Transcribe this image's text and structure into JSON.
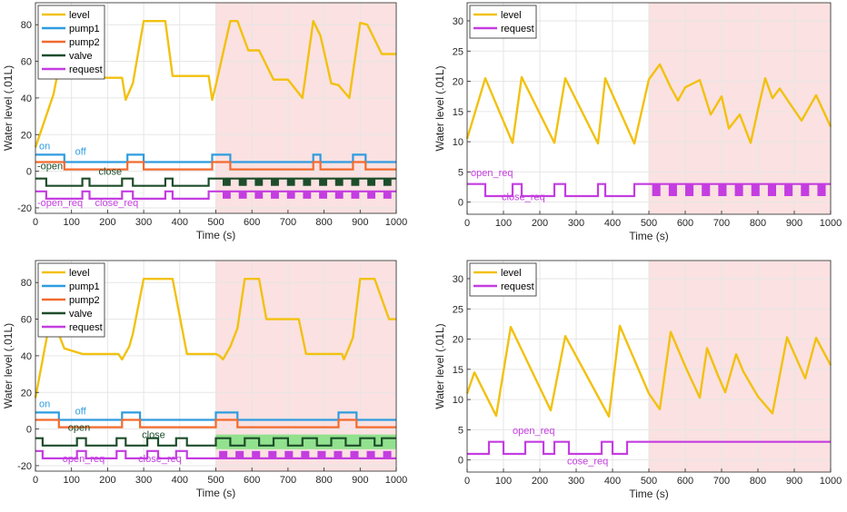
{
  "colors": {
    "level": "#f2c10f",
    "pump1": "#2e9ce0",
    "pump2": "#f26a2e",
    "valve": "#1e4d2b",
    "request": "#c43de0",
    "shade_red": "#fbe1e1",
    "shade_green": "#7fe07f",
    "grid": "#e6e6e6",
    "axis": "#262626"
  },
  "chart_data": [
    {
      "type": "line",
      "panel": "top-left",
      "xlabel": "Time (s)",
      "ylabel": "Water level (.01L)",
      "xlim": [
        0,
        1000
      ],
      "ylim": [
        -23,
        92
      ],
      "xticks": [
        0,
        100,
        200,
        300,
        400,
        500,
        600,
        700,
        800,
        900,
        1000
      ],
      "yticks": [
        -20,
        0,
        20,
        40,
        60,
        80
      ],
      "shaded_x": [
        500,
        1000
      ],
      "legend": [
        "level",
        "pump1",
        "pump2",
        "valve",
        "request"
      ],
      "annotations": [
        {
          "text": "on",
          "x": 5,
          "y": 11,
          "series": "pump1"
        },
        {
          "text": "off",
          "x": 105,
          "y": 8,
          "series": "pump1"
        },
        {
          "text": "-open",
          "x": 0,
          "y": 0,
          "series": "valve"
        },
        {
          "text": "close",
          "x": 170,
          "y": -3,
          "series": "valve"
        },
        {
          "text": "-open_req",
          "x": 0,
          "y": -20,
          "series": "request"
        },
        {
          "text": "close_req",
          "x": 160,
          "y": -20,
          "series": "request"
        }
      ],
      "series": [
        {
          "name": "level",
          "x": [
            0,
            50,
            70,
            130,
            200,
            240,
            250,
            270,
            300,
            360,
            380,
            400,
            450,
            480,
            490,
            500,
            540,
            560,
            590,
            620,
            660,
            700,
            740,
            770,
            790,
            820,
            840,
            870,
            900,
            920,
            960,
            1000
          ],
          "y": [
            13,
            42,
            62,
            52,
            51,
            51,
            39,
            48,
            82,
            82,
            52,
            52,
            52,
            52,
            39,
            47,
            82,
            82,
            66,
            66,
            50,
            50,
            40,
            82,
            74,
            48,
            47,
            40,
            81,
            80,
            64,
            64
          ]
        },
        {
          "name": "pump1",
          "step_x": [
            0,
            80,
            255,
            300,
            490,
            540,
            770,
            790,
            880,
            915,
            1000
          ],
          "levels": [
            9,
            5
          ]
        },
        {
          "name": "pump2",
          "step_x": [
            0,
            80,
            255,
            300,
            490,
            540,
            770,
            790,
            880,
            915,
            1000
          ],
          "levels": [
            5,
            1
          ]
        },
        {
          "name": "valve",
          "step_x": [
            0,
            30,
            130,
            150,
            240,
            270,
            360,
            380,
            480,
            510
          ],
          "levels": [
            -4,
            -8
          ],
          "burst_x": [
            510,
            1000
          ]
        },
        {
          "name": "request",
          "step_x": [
            0,
            30,
            130,
            150,
            240,
            270,
            360,
            380,
            480,
            510
          ],
          "levels": [
            -11,
            -15
          ],
          "burst_x": [
            510,
            1000
          ]
        }
      ]
    },
    {
      "type": "line",
      "panel": "top-right",
      "xlabel": "Time (s)",
      "ylabel": "Water level (.01L)",
      "xlim": [
        0,
        1000
      ],
      "ylim": [
        -2,
        33
      ],
      "xticks": [
        0,
        100,
        200,
        300,
        400,
        500,
        600,
        700,
        800,
        900,
        1000
      ],
      "yticks": [
        0,
        5,
        10,
        15,
        20,
        25,
        30
      ],
      "shaded_x": [
        500,
        1000
      ],
      "legend": [
        "level",
        "request"
      ],
      "annotations": [
        {
          "text": "open_req",
          "x": 5,
          "y": 4,
          "series": "request"
        },
        {
          "text": "close_req",
          "x": 90,
          "y": 0,
          "series": "request"
        }
      ],
      "series": [
        {
          "name": "level",
          "x": [
            0,
            50,
            125,
            150,
            240,
            270,
            360,
            380,
            460,
            500,
            530,
            560,
            580,
            600,
            640,
            670,
            700,
            720,
            750,
            780,
            800,
            820,
            840,
            860,
            880,
            920,
            960,
            1000
          ],
          "y": [
            10.5,
            20.5,
            9.8,
            20.7,
            9.8,
            20.5,
            9.7,
            20.5,
            9.7,
            20.3,
            22.8,
            19,
            16.8,
            19,
            20.2,
            14.5,
            17.5,
            12.2,
            14.5,
            9.8,
            15.3,
            20.5,
            17.2,
            18.8,
            17,
            13.5,
            17.7,
            12.5
          ]
        },
        {
          "name": "request",
          "step_x": [
            0,
            50,
            125,
            150,
            240,
            270,
            360,
            380,
            460,
            500
          ],
          "levels": [
            3,
            1
          ],
          "burst_x": [
            500,
            1000
          ]
        }
      ]
    },
    {
      "type": "line",
      "panel": "bottom-left",
      "xlabel": "Time (s)",
      "ylabel": "Water level (.01L)",
      "xlim": [
        0,
        1000
      ],
      "ylim": [
        -23,
        92
      ],
      "xticks": [
        0,
        100,
        200,
        300,
        400,
        500,
        600,
        700,
        800,
        900,
        1000
      ],
      "yticks": [
        -20,
        0,
        20,
        40,
        60,
        80
      ],
      "shaded_x": [
        500,
        1000
      ],
      "shaded_green_x": [
        500,
        1000
      ],
      "legend": [
        "level",
        "pump1",
        "pump2",
        "valve",
        "request"
      ],
      "annotations": [
        {
          "text": "on",
          "x": 5,
          "y": 11,
          "series": "pump1"
        },
        {
          "text": "off",
          "x": 105,
          "y": 7,
          "series": "pump1"
        },
        {
          "text": "open",
          "x": 85,
          "y": -2,
          "series": "valve"
        },
        {
          "text": "close",
          "x": 290,
          "y": -6,
          "series": "valve"
        },
        {
          "text": "open_req",
          "x": 70,
          "y": -19,
          "series": "request"
        },
        {
          "text": "close_req",
          "x": 280,
          "y": -19,
          "series": "request"
        }
      ],
      "series": [
        {
          "name": "level",
          "x": [
            0,
            40,
            60,
            80,
            130,
            230,
            240,
            260,
            270,
            300,
            380,
            420,
            500,
            510,
            520,
            540,
            560,
            580,
            620,
            640,
            730,
            750,
            850,
            855,
            870,
            880,
            900,
            940,
            980,
            1000
          ],
          "y": [
            17,
            59,
            54,
            44,
            41,
            41,
            38,
            45,
            52,
            82,
            82,
            41,
            41,
            40,
            38,
            45,
            55,
            82,
            82,
            60,
            60,
            41,
            41,
            38,
            45,
            50,
            82,
            82,
            60,
            60
          ]
        },
        {
          "name": "pump1",
          "step_x": [
            0,
            65,
            240,
            290,
            500,
            560,
            840,
            890,
            1000
          ],
          "levels": [
            9,
            5
          ]
        },
        {
          "name": "pump2",
          "step_x": [
            0,
            65,
            240,
            290,
            500,
            560,
            840,
            890,
            1000
          ],
          "levels": [
            5,
            1
          ]
        },
        {
          "name": "valve",
          "step_x": [
            0,
            20,
            115,
            140,
            225,
            250,
            310,
            340,
            390,
            420,
            500,
            540,
            580,
            620,
            660,
            700,
            740,
            780,
            820,
            860,
            900,
            940,
            960,
            1000
          ],
          "levels": [
            -5,
            -9
          ]
        },
        {
          "name": "request",
          "step_x": [
            0,
            20,
            115,
            140,
            225,
            250,
            310,
            340,
            390,
            420,
            500
          ],
          "levels": [
            -12,
            -16
          ],
          "burst_x": [
            500,
            1000
          ]
        }
      ]
    },
    {
      "type": "line",
      "panel": "bottom-right",
      "xlabel": "Time (s)",
      "ylabel": "Water level (.01L)",
      "xlim": [
        0,
        1000
      ],
      "ylim": [
        -2,
        33
      ],
      "xticks": [
        0,
        100,
        200,
        300,
        400,
        500,
        600,
        700,
        800,
        900,
        1000
      ],
      "yticks": [
        0,
        5,
        10,
        15,
        20,
        25,
        30
      ],
      "shaded_x": [
        500,
        1000
      ],
      "legend": [
        "level",
        "request"
      ],
      "annotations": [
        {
          "text": "open_req",
          "x": 120,
          "y": 4,
          "series": "request"
        },
        {
          "text": "cose_req",
          "x": 270,
          "y": -1,
          "series": "request"
        }
      ],
      "series": [
        {
          "name": "level",
          "x": [
            0,
            20,
            80,
            120,
            230,
            270,
            390,
            420,
            500,
            530,
            560,
            600,
            640,
            660,
            690,
            710,
            740,
            760,
            800,
            840,
            880,
            930,
            960,
            1000
          ],
          "y": [
            11,
            14.5,
            7.3,
            22,
            8.2,
            20.5,
            7.2,
            22.2,
            11,
            8.4,
            21.2,
            15.5,
            10.3,
            18.5,
            14,
            11.2,
            17.5,
            14.6,
            10.5,
            7.7,
            20.3,
            13.5,
            20.2,
            15.7
          ]
        },
        {
          "name": "request",
          "step_x": [
            0,
            60,
            100,
            160,
            210,
            240,
            280,
            370,
            400,
            440,
            510
          ],
          "levels": [
            1,
            3
          ],
          "burst_x": [
            510,
            1000
          ]
        }
      ]
    }
  ]
}
